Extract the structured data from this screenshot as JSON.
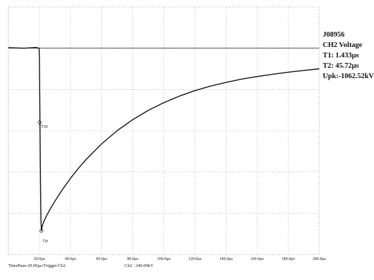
{
  "panel": {
    "id": "J08956",
    "channel": "CH2 Voltage",
    "t1": "T1:  1.433µs",
    "t2": "T2:  45.72µs",
    "upk": "Upk:-1062.52kV"
  },
  "footer": {
    "timebase": "TimeBase:20.00µs/Trigger:Ch2",
    "ch2": "Ch2 :  240.00kV"
  },
  "chart_data": {
    "type": "line",
    "title": "",
    "xlabel": "",
    "ylabel": "",
    "x_unit": "µs",
    "xlim": [
      0,
      200
    ],
    "ylim": [
      -1200,
      240
    ],
    "x_ticks": [
      "20.0µs",
      "40.0µs",
      "60.0µs",
      "80.0µs",
      "100.0µs",
      "120.0µs",
      "140.0µs",
      "160.0µs",
      "180.0µs",
      "200.0µs"
    ],
    "x_tick_values": [
      20,
      40,
      60,
      80,
      100,
      120,
      140,
      160,
      180,
      200
    ],
    "y_gridlines_kV": [
      -1200,
      -960,
      -720,
      -480,
      -240,
      0,
      240
    ],
    "grid": true,
    "grid_style": "dotted",
    "reference_level": 0,
    "annotations": [
      {
        "text": "T30",
        "x": 20.1,
        "y": -432
      },
      {
        "text": "Up",
        "x": 21.3,
        "y": -1062.52
      }
    ],
    "series": [
      {
        "color": "#111111",
        "x": [
          0,
          10,
          18,
          19,
          19.8,
          20.0,
          20.2,
          20.4,
          20.6,
          20.8,
          21.0,
          21.3,
          21.6,
          22,
          23,
          25,
          27,
          30,
          35,
          40,
          45,
          50,
          60,
          70,
          80,
          90,
          100,
          110,
          120,
          130,
          140,
          150,
          160,
          170,
          180,
          190,
          200
        ],
        "y": [
          3,
          0,
          4,
          1,
          0,
          -60,
          -250,
          -470,
          -680,
          -870,
          -1000,
          -1062.52,
          -1045,
          -1030,
          -1005,
          -968,
          -935,
          -890,
          -820,
          -757,
          -700,
          -648,
          -557,
          -480,
          -416,
          -362,
          -317,
          -279,
          -247,
          -221,
          -199,
          -180,
          -165,
          -152,
          -140,
          -130,
          -120
        ]
      }
    ]
  }
}
